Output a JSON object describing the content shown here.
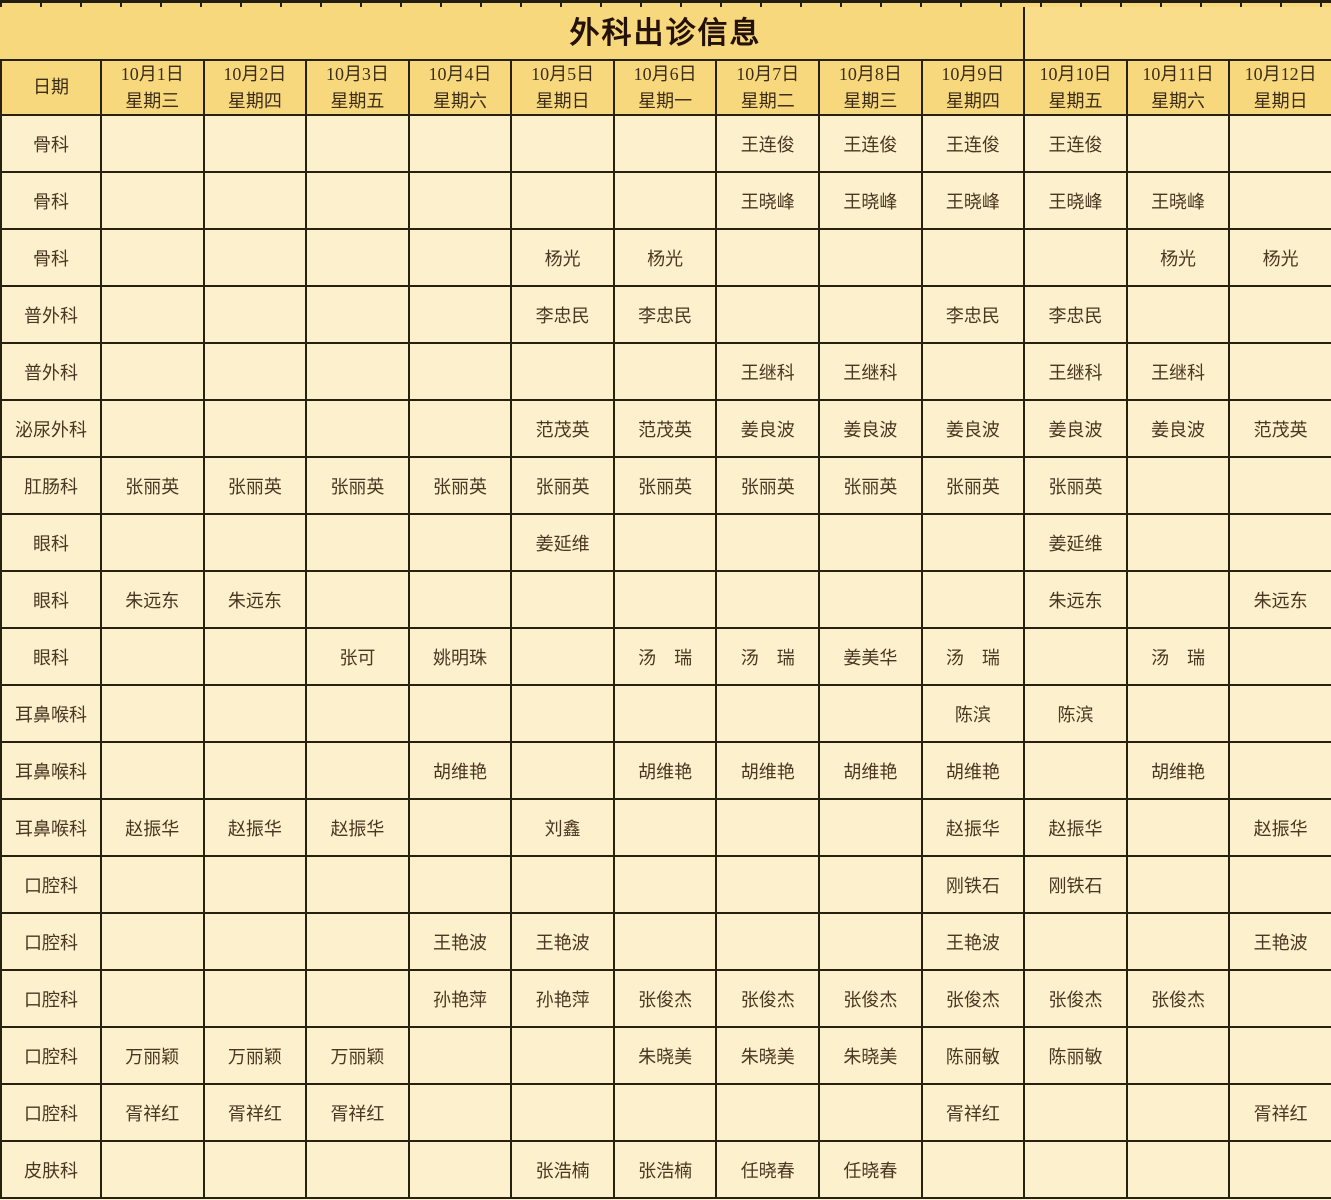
{
  "table": {
    "title": "外科出诊信息",
    "date_label": "日期",
    "columns": [
      {
        "date": "10月1日",
        "weekday": "星期三"
      },
      {
        "date": "10月2日",
        "weekday": "星期四"
      },
      {
        "date": "10月3日",
        "weekday": "星期五"
      },
      {
        "date": "10月4日",
        "weekday": "星期六"
      },
      {
        "date": "10月5日",
        "weekday": "星期日"
      },
      {
        "date": "10月6日",
        "weekday": "星期一"
      },
      {
        "date": "10月7日",
        "weekday": "星期二"
      },
      {
        "date": "10月8日",
        "weekday": "星期三"
      },
      {
        "date": "10月9日",
        "weekday": "星期四"
      },
      {
        "date": "10月10日",
        "weekday": "星期五"
      },
      {
        "date": "10月11日",
        "weekday": "星期六"
      },
      {
        "date": "10月12日",
        "weekday": "星期日"
      }
    ],
    "rows": [
      {
        "dept": "骨科",
        "cells": [
          "",
          "",
          "",
          "",
          "",
          "",
          "王连俊",
          "王连俊",
          "王连俊",
          "王连俊",
          "",
          ""
        ]
      },
      {
        "dept": "骨科",
        "cells": [
          "",
          "",
          "",
          "",
          "",
          "",
          "王晓峰",
          "王晓峰",
          "王晓峰",
          "王晓峰",
          "王晓峰",
          ""
        ]
      },
      {
        "dept": "骨科",
        "cells": [
          "",
          "",
          "",
          "",
          "杨光",
          "杨光",
          "",
          "",
          "",
          "",
          "杨光",
          "杨光"
        ]
      },
      {
        "dept": "普外科",
        "cells": [
          "",
          "",
          "",
          "",
          "李忠民",
          "李忠民",
          "",
          "",
          "李忠民",
          "李忠民",
          "",
          ""
        ]
      },
      {
        "dept": "普外科",
        "cells": [
          "",
          "",
          "",
          "",
          "",
          "",
          "王继科",
          "王继科",
          "",
          "王继科",
          "王继科",
          ""
        ]
      },
      {
        "dept": "泌尿外科",
        "cells": [
          "",
          "",
          "",
          "",
          "范茂英",
          "范茂英",
          "姜良波",
          "姜良波",
          "姜良波",
          "姜良波",
          "姜良波",
          "范茂英"
        ]
      },
      {
        "dept": "肛肠科",
        "cells": [
          "张丽英",
          "张丽英",
          "张丽英",
          "张丽英",
          "张丽英",
          "张丽英",
          "张丽英",
          "张丽英",
          "张丽英",
          "张丽英",
          "",
          ""
        ]
      },
      {
        "dept": "眼科",
        "cells": [
          "",
          "",
          "",
          "",
          "姜延维",
          "",
          "",
          "",
          "",
          "姜延维",
          "",
          ""
        ]
      },
      {
        "dept": "眼科",
        "cells": [
          "朱远东",
          "朱远东",
          "",
          "",
          "",
          "",
          "",
          "",
          "",
          "朱远东",
          "",
          "朱远东"
        ]
      },
      {
        "dept": "眼科",
        "cells": [
          "",
          "",
          "张可",
          "姚明珠",
          "",
          "汤　瑞",
          "汤　瑞",
          "姜美华",
          "汤　瑞",
          "",
          "汤　瑞",
          ""
        ]
      },
      {
        "dept": "耳鼻喉科",
        "cells": [
          "",
          "",
          "",
          "",
          "",
          "",
          "",
          "",
          "陈滨",
          "陈滨",
          "",
          ""
        ]
      },
      {
        "dept": "耳鼻喉科",
        "cells": [
          "",
          "",
          "",
          "胡维艳",
          "",
          "胡维艳",
          "胡维艳",
          "胡维艳",
          "胡维艳",
          "",
          "胡维艳",
          ""
        ]
      },
      {
        "dept": "耳鼻喉科",
        "cells": [
          "赵振华",
          "赵振华",
          "赵振华",
          "",
          "刘鑫",
          "",
          "",
          "",
          "赵振华",
          "赵振华",
          "",
          "赵振华"
        ]
      },
      {
        "dept": "口腔科",
        "cells": [
          "",
          "",
          "",
          "",
          "",
          "",
          "",
          "",
          "刚铁石",
          "刚铁石",
          "",
          ""
        ]
      },
      {
        "dept": "口腔科",
        "cells": [
          "",
          "",
          "",
          "王艳波",
          "王艳波",
          "",
          "",
          "",
          "王艳波",
          "",
          "",
          "王艳波"
        ]
      },
      {
        "dept": "口腔科",
        "cells": [
          "",
          "",
          "",
          "孙艳萍",
          "孙艳萍",
          "张俊杰",
          "张俊杰",
          "张俊杰",
          "张俊杰",
          "张俊杰",
          "张俊杰",
          ""
        ]
      },
      {
        "dept": "口腔科",
        "cells": [
          "万丽颖",
          "万丽颖",
          "万丽颖",
          "",
          "",
          "朱晓美",
          "朱晓美",
          "朱晓美",
          "陈丽敏",
          "陈丽敏",
          "",
          ""
        ]
      },
      {
        "dept": "口腔科",
        "cells": [
          "胥祥红",
          "胥祥红",
          "胥祥红",
          "",
          "",
          "",
          "",
          "",
          "胥祥红",
          "",
          "",
          "胥祥红"
        ]
      },
      {
        "dept": "皮肤科",
        "cells": [
          "",
          "",
          "",
          "",
          "张浩楠",
          "张浩楠",
          "任晓春",
          "任晓春",
          "",
          "",
          "",
          ""
        ]
      }
    ]
  },
  "colors": {
    "header_bg": "#f8d87c",
    "header_bg_light": "#f9dd8b",
    "body_bg": "#fcf1cc",
    "border": "#27220f",
    "text": "#4a3622",
    "title_text": "#241208"
  }
}
